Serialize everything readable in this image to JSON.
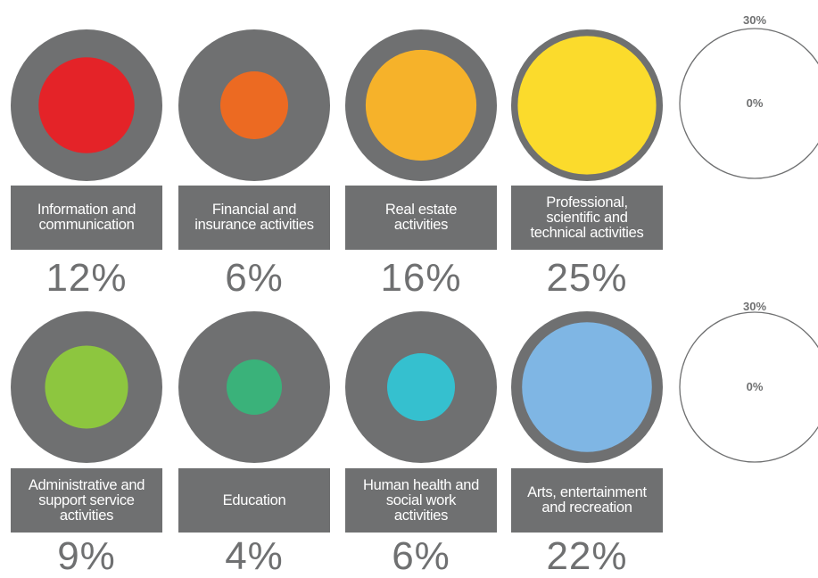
{
  "chart_data": {
    "type": "bubble",
    "scale": {
      "outer_label": "30%",
      "center_label": "0%",
      "max_value": 30
    },
    "items": [
      {
        "category": "Information and communication",
        "label_lines": [
          "Information and",
          "communication"
        ],
        "value": 12,
        "value_text": "12%",
        "color": "#e42328"
      },
      {
        "category": "Financial and insurance activities",
        "label_lines": [
          "Financial and",
          "insurance activities"
        ],
        "value": 6,
        "value_text": "6%",
        "color": "#ec6a22"
      },
      {
        "category": "Real estate activities",
        "label_lines": [
          "Real estate",
          "activities"
        ],
        "value": 16,
        "value_text": "16%",
        "color": "#f6b22a"
      },
      {
        "category": "Professional, scientific and technical activities",
        "label_lines": [
          "Professional,",
          "scientific and",
          "technical activities"
        ],
        "value": 25,
        "value_text": "25%",
        "color": "#fbdb2c"
      },
      {
        "category": "Administrative and support service activities",
        "label_lines": [
          "Administrative and",
          "support service",
          "activities"
        ],
        "value": 9,
        "value_text": "9%",
        "color": "#8dc63f"
      },
      {
        "category": "Education",
        "label_lines": [
          "Education"
        ],
        "value": 4,
        "value_text": "4%",
        "color": "#3ab27a"
      },
      {
        "category": "Human health and social work activities",
        "label_lines": [
          "Human health and",
          "social work",
          "activities"
        ],
        "value": 6,
        "value_text": "6%",
        "color": "#35c0cf"
      },
      {
        "category": "Arts, entertainment and recreation",
        "label_lines": [
          "Arts, entertainment",
          "and recreation"
        ],
        "value": 22,
        "value_text": "22%",
        "color": "#7fb6e4"
      }
    ],
    "background_circle_color": "#6f7071"
  }
}
